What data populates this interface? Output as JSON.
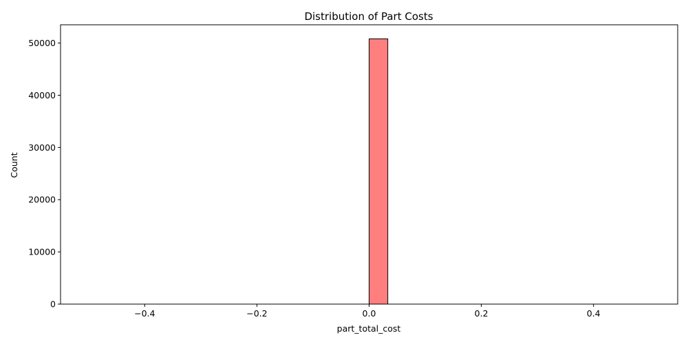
{
  "chart_data": {
    "type": "bar",
    "title": "Distribution of Part Costs",
    "xlabel": "part_total_cost",
    "ylabel": "Count",
    "xlim": [
      -0.55,
      0.55
    ],
    "ylim": [
      0,
      53500
    ],
    "x_ticks": [
      -0.4,
      -0.2,
      0.0,
      0.2,
      0.4
    ],
    "x_tick_labels": [
      "−0.4",
      "−0.2",
      "0.0",
      "0.2",
      "0.4"
    ],
    "y_ticks": [
      0,
      10000,
      20000,
      30000,
      40000,
      50000
    ],
    "y_tick_labels": [
      "0",
      "10000",
      "20000",
      "30000",
      "40000",
      "50000"
    ],
    "bins": {
      "start": -0.5,
      "end": 0.5,
      "count": 30
    },
    "bars": [
      {
        "x0": 0.0,
        "x1": 0.0333,
        "value": 50800
      }
    ],
    "bar_color": "#ff7f7f",
    "edge_color": "#000000",
    "grid": false,
    "legend": false
  }
}
